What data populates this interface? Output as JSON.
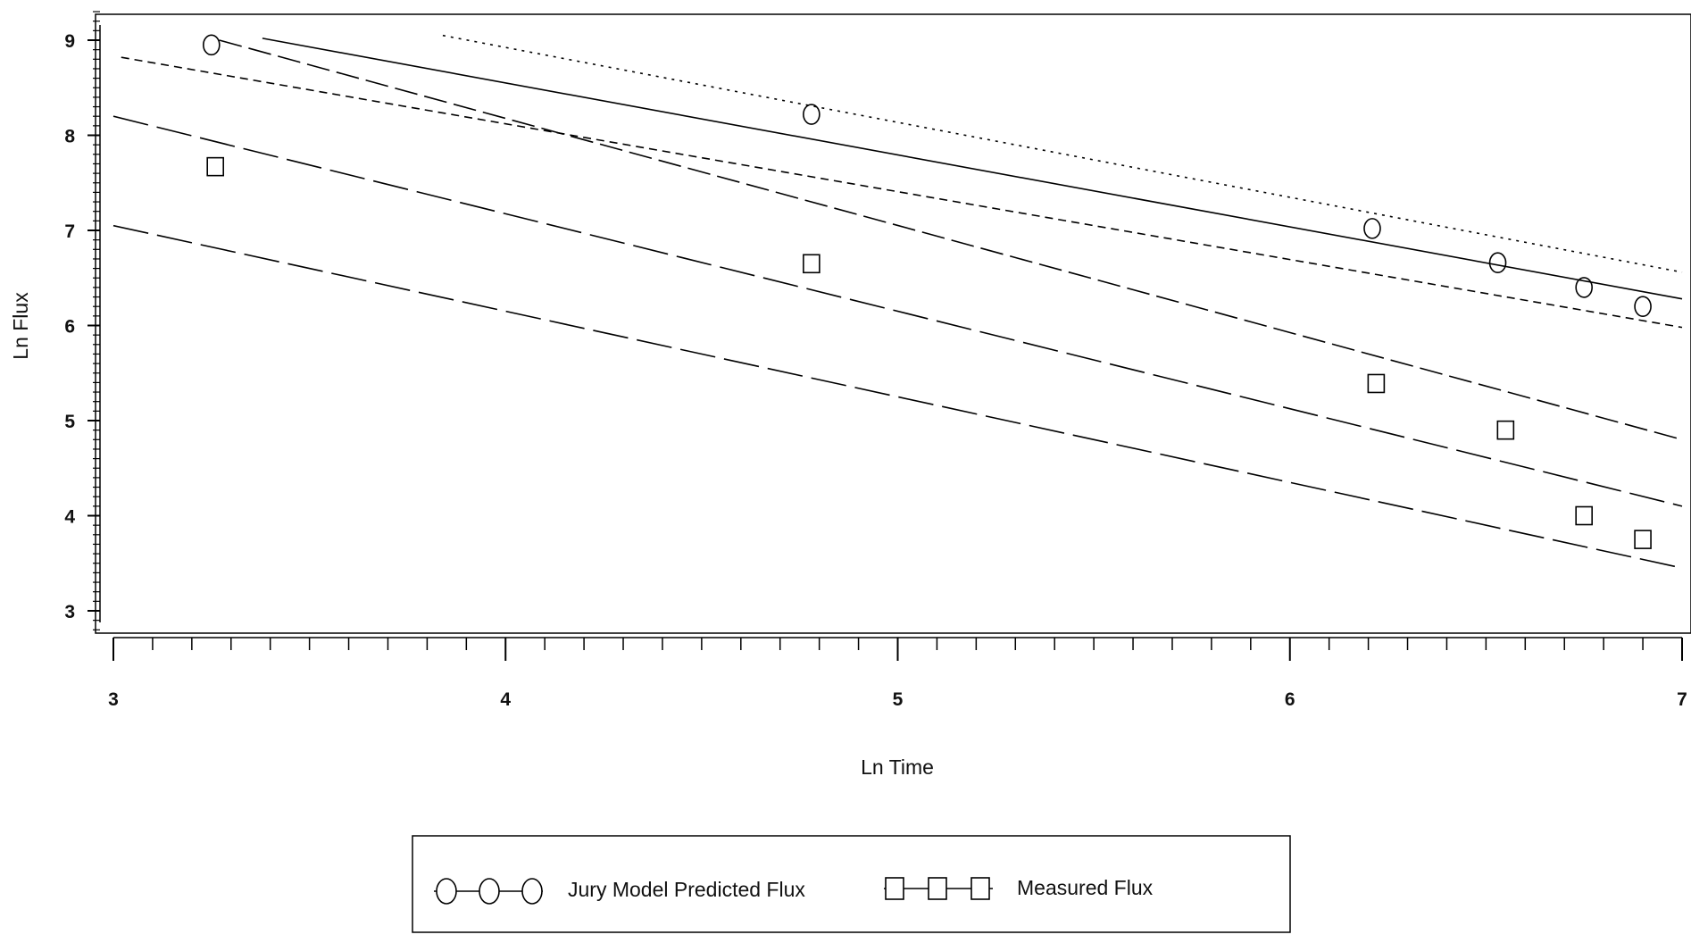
{
  "chart_data": {
    "type": "scatter",
    "title": "",
    "xlabel": "Ln Time",
    "ylabel": "Ln Flux",
    "xlim": [
      3,
      7
    ],
    "ylim": [
      2.8,
      9.3
    ],
    "x_ticks": [
      3,
      4,
      5,
      6,
      7
    ],
    "x_tick_labels": [
      "3",
      "4",
      "5",
      "6",
      "7"
    ],
    "y_ticks": [
      3,
      4,
      5,
      6,
      7,
      8,
      9
    ],
    "y_tick_labels": [
      "3",
      "4",
      "5",
      "6",
      "7",
      "8",
      "9"
    ],
    "grid": false,
    "legend_position": "bottom",
    "series": [
      {
        "name": "Jury Model Predicted Flux",
        "marker": "circle",
        "x": [
          3.25,
          4.78,
          6.21,
          6.53,
          6.75,
          6.9
        ],
        "y": [
          8.95,
          8.22,
          7.02,
          6.66,
          6.4,
          6.2
        ]
      },
      {
        "name": "Measured Flux",
        "marker": "square",
        "x": [
          3.26,
          4.78,
          6.22,
          6.55,
          6.75,
          6.9
        ],
        "y": [
          7.67,
          6.65,
          5.39,
          4.9,
          4.0,
          3.75
        ]
      }
    ],
    "fit_lines": [
      {
        "style": "solid",
        "x": [
          3.38,
          7.0
        ],
        "y": [
          9.02,
          6.28
        ]
      },
      {
        "style": "dotted",
        "x": [
          3.84,
          7.0
        ],
        "y": [
          9.05,
          6.56
        ]
      },
      {
        "style": "short-dash",
        "x": [
          3.02,
          7.0
        ],
        "y": [
          8.82,
          5.98
        ]
      },
      {
        "style": "medium-dash",
        "x": [
          3.27,
          7.0
        ],
        "y": [
          9.0,
          4.8
        ]
      },
      {
        "style": "long-dash",
        "x": [
          3.0,
          7.0
        ],
        "y": [
          8.2,
          4.1
        ]
      },
      {
        "style": "long-dash",
        "x": [
          3.0,
          7.0
        ],
        "y": [
          7.05,
          3.45
        ]
      }
    ]
  }
}
